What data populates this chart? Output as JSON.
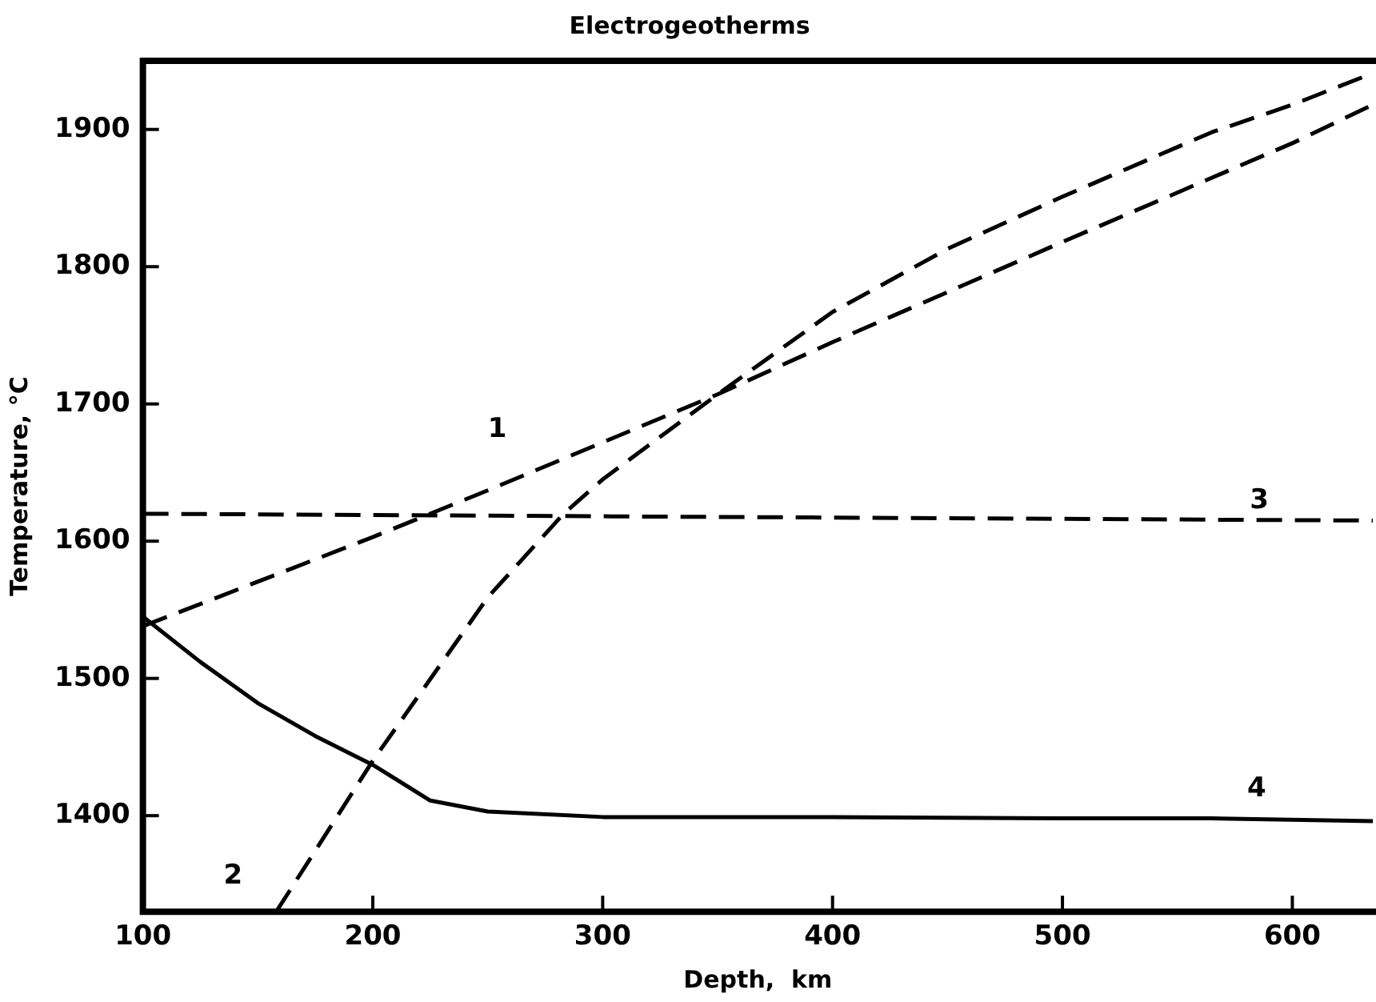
{
  "chart_data": {
    "type": "line",
    "title": "Electrogeotherms",
    "xlabel": "Depth,  km",
    "ylabel": "Temperature, °C",
    "xlim": [
      100,
      635
    ],
    "ylim": [
      1330,
      1950
    ],
    "xticks": [
      100,
      200,
      300,
      400,
      500,
      600
    ],
    "yticks": [
      1400,
      1500,
      1600,
      1700,
      1800,
      1900
    ],
    "grid": false,
    "legend": false,
    "marker": "none",
    "series": [
      {
        "name": "1",
        "color": "#000000",
        "line_style": "dashed",
        "x": [
          100,
          200,
          250,
          300,
          350,
          400,
          500,
          600,
          635
        ],
        "values": [
          1538,
          1603,
          1637,
          1672,
          1707,
          1745,
          1818,
          1890,
          1918
        ]
      },
      {
        "name": "2",
        "color": "#000000",
        "line_style": "dashed",
        "x": [
          158,
          200,
          250,
          283,
          300,
          350,
          400,
          450,
          500,
          565,
          600,
          635
        ],
        "values": [
          1330,
          1440,
          1559,
          1620,
          1645,
          1707,
          1767,
          1813,
          1851,
          1898,
          1918,
          1941
        ]
      },
      {
        "name": "3",
        "color": "#000000",
        "line_style": "dashed",
        "x": [
          100,
          635
        ],
        "values": [
          1620,
          1615
        ]
      },
      {
        "name": "4",
        "color": "#000000",
        "line_style": "solid",
        "x": [
          100,
          125,
          150,
          175,
          200,
          225,
          250,
          300,
          400,
          500,
          565,
          635
        ],
        "values": [
          1545,
          1512,
          1482,
          1458,
          1437,
          1411,
          1403,
          1399,
          1399,
          1398,
          1398,
          1396
        ]
      }
    ]
  }
}
